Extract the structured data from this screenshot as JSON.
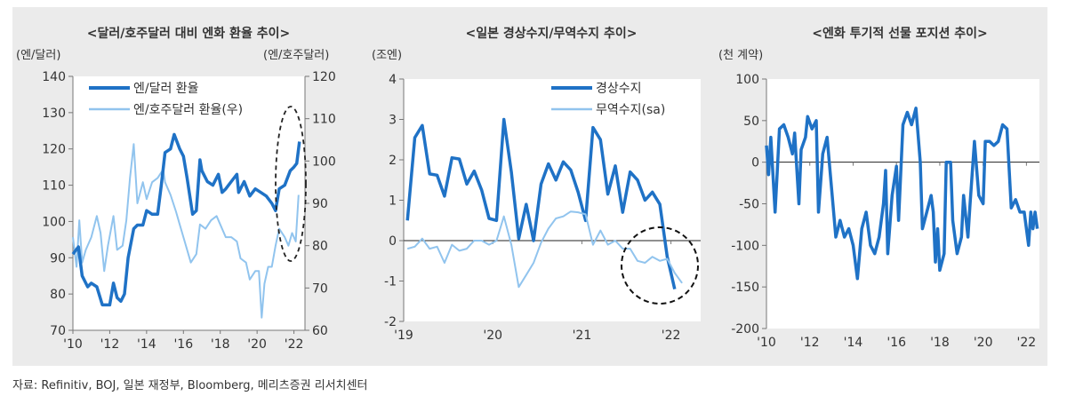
{
  "source": "자료: Refinitiv, BOJ, 일본 재정부, Bloomberg, 메리츠증권 리서치센터",
  "colors": {
    "dark": "#1f72c6",
    "light": "#91c4ee",
    "panel": "#ebebeb"
  },
  "chart_data": [
    {
      "type": "line",
      "title": "<달러/호주달러 대비 엔화 환율 추이>",
      "ylabel": "(엔/달러)",
      "ylabel_right": "(엔/호주달러)",
      "ylim": [
        70,
        140
      ],
      "ylim_right": [
        60,
        120
      ],
      "yticks": [
        "140",
        "130",
        "120",
        "110",
        "100",
        "90",
        "80",
        "70"
      ],
      "yticks_right": [
        "120",
        "110",
        "100",
        "90",
        "80",
        "70",
        "60"
      ],
      "xticks": [
        "'10",
        "'12",
        "'14",
        "'16",
        "'18",
        "'20",
        "'22"
      ],
      "xlim": [
        2010,
        2022.6
      ],
      "legend_position": "top-left",
      "annotation": "dashed ellipse around 2021-2022",
      "series": [
        {
          "name": "엔/달러 환율",
          "axis": "left",
          "color": "#1f72c6",
          "x": [
            2010.0,
            2010.3,
            2010.5,
            2010.8,
            2011.0,
            2011.3,
            2011.6,
            2011.8,
            2012.0,
            2012.2,
            2012.4,
            2012.6,
            2012.8,
            2013.0,
            2013.3,
            2013.5,
            2013.8,
            2014.0,
            2014.3,
            2014.6,
            2014.8,
            2015.0,
            2015.3,
            2015.5,
            2015.8,
            2016.0,
            2016.2,
            2016.5,
            2016.7,
            2016.9,
            2017.0,
            2017.3,
            2017.6,
            2017.9,
            2018.1,
            2018.3,
            2018.6,
            2018.9,
            2019.0,
            2019.3,
            2019.6,
            2019.9,
            2020.2,
            2020.5,
            2020.8,
            2021.0,
            2021.2,
            2021.5,
            2021.8,
            2022.0,
            2022.15,
            2022.3
          ],
          "values": [
            91,
            93,
            85,
            82,
            83,
            82,
            77,
            77,
            77,
            83,
            79,
            78,
            80,
            90,
            98,
            99,
            99,
            103,
            102,
            102,
            110,
            119,
            120,
            124,
            120,
            118,
            112,
            102,
            103,
            117,
            114,
            111,
            110,
            113,
            108,
            109,
            111,
            113,
            108,
            111,
            107,
            109,
            108,
            107,
            105,
            103,
            109,
            110,
            114,
            115,
            116,
            122
          ]
        },
        {
          "name": "엔/호주달러 환율(우)",
          "axis": "right",
          "color": "#91c4ee",
          "x": [
            2010.0,
            2010.2,
            2010.35,
            2010.5,
            2010.7,
            2011.0,
            2011.3,
            2011.5,
            2011.7,
            2011.9,
            2012.2,
            2012.4,
            2012.7,
            2012.9,
            2013.1,
            2013.3,
            2013.5,
            2013.8,
            2014.0,
            2014.3,
            2014.6,
            2014.9,
            2015.0,
            2015.3,
            2015.6,
            2015.8,
            2016.0,
            2016.4,
            2016.7,
            2016.9,
            2017.2,
            2017.5,
            2017.8,
            2018.0,
            2018.3,
            2018.6,
            2018.9,
            2019.1,
            2019.4,
            2019.6,
            2019.9,
            2020.1,
            2020.25,
            2020.4,
            2020.6,
            2020.8,
            2021.0,
            2021.2,
            2021.5,
            2021.7,
            2021.9,
            2022.1,
            2022.25
          ],
          "values": [
            82,
            75,
            86,
            76,
            79,
            82,
            87,
            83,
            74,
            80,
            87,
            79,
            80,
            86,
            96,
            104,
            90,
            95,
            91,
            95,
            96,
            98,
            95,
            92,
            88,
            85,
            82,
            76,
            78,
            85,
            84,
            86,
            87,
            85,
            82,
            82,
            81,
            77,
            76,
            72,
            74,
            74,
            63,
            71,
            75,
            75,
            80,
            84,
            82,
            80,
            83,
            81,
            92
          ]
        }
      ]
    },
    {
      "type": "line",
      "title": "<일본 경상수지/무역수지 추이>",
      "ylabel": "(조엔)",
      "ylim": [
        -2,
        4
      ],
      "yticks": [
        "4",
        "3",
        "2",
        "1",
        "0",
        "-1",
        "-2"
      ],
      "xticks": [
        "'19",
        "'20",
        "'21",
        "'22"
      ],
      "x_start": "2019-01",
      "frequency": "monthly",
      "legend_position": "top-right",
      "annotation": "dashed circle around late 2021-2022",
      "series": [
        {
          "name": "경상수지",
          "color": "#1f72c6",
          "values": [
            0.5,
            2.55,
            2.85,
            1.65,
            1.62,
            1.1,
            2.05,
            2.02,
            1.4,
            1.72,
            1.25,
            0.55,
            0.5,
            3.0,
            1.7,
            0.05,
            0.9,
            0.0,
            1.4,
            1.9,
            1.5,
            1.95,
            1.75,
            1.2,
            0.5,
            2.8,
            2.5,
            1.15,
            1.85,
            0.7,
            1.7,
            1.5,
            1.0,
            1.2,
            0.9,
            -0.4,
            -1.2
          ]
        },
        {
          "name": "무역수지(sa)",
          "color": "#91c4ee",
          "values": [
            -0.2,
            -0.15,
            0.05,
            -0.2,
            -0.15,
            -0.55,
            -0.1,
            -0.25,
            -0.2,
            0.0,
            0.0,
            -0.1,
            0.0,
            0.6,
            -0.1,
            -1.15,
            -0.85,
            -0.55,
            -0.05,
            0.3,
            0.55,
            0.6,
            0.72,
            0.7,
            0.65,
            -0.1,
            0.25,
            -0.1,
            0.0,
            -0.2,
            -0.2,
            -0.5,
            -0.55,
            -0.4,
            -0.5,
            -0.45,
            -0.8,
            -1.05
          ]
        }
      ]
    },
    {
      "type": "line",
      "title": "<엔화 투기적 선물 포지션 추이>",
      "ylabel": "(천 계약)",
      "ylim": [
        -200,
        100
      ],
      "yticks": [
        "100",
        "50",
        "0",
        "-50",
        "-100",
        "-150",
        "-200"
      ],
      "xticks": [
        "'10",
        "'12",
        "'14",
        "'16",
        "'18",
        "'20",
        "'22"
      ],
      "xlim": [
        2010,
        2022.6
      ],
      "series": [
        {
          "color": "#1f72c6",
          "x": [
            2010.0,
            2010.1,
            2010.2,
            2010.4,
            2010.5,
            2010.6,
            2010.8,
            2011.0,
            2011.2,
            2011.3,
            2011.5,
            2011.6,
            2011.8,
            2011.9,
            2012.1,
            2012.3,
            2012.4,
            2012.6,
            2012.8,
            2013.0,
            2013.2,
            2013.4,
            2013.6,
            2013.8,
            2014.0,
            2014.2,
            2014.4,
            2014.6,
            2014.8,
            2015.0,
            2015.2,
            2015.4,
            2015.5,
            2015.6,
            2015.8,
            2016.0,
            2016.1,
            2016.3,
            2016.5,
            2016.7,
            2016.9,
            2017.1,
            2017.2,
            2017.4,
            2017.6,
            2017.7,
            2017.8,
            2017.9,
            2018.0,
            2018.2,
            2018.3,
            2018.5,
            2018.6,
            2018.8,
            2019.0,
            2019.1,
            2019.3,
            2019.4,
            2019.6,
            2019.8,
            2020.0,
            2020.1,
            2020.3,
            2020.5,
            2020.7,
            2020.9,
            2021.1,
            2021.3,
            2021.5,
            2021.7,
            2021.9,
            2022.1,
            2022.2,
            2022.3,
            2022.4,
            2022.5
          ],
          "values": [
            20,
            -15,
            30,
            -60,
            -10,
            40,
            45,
            30,
            10,
            35,
            -50,
            15,
            30,
            55,
            40,
            50,
            -60,
            10,
            30,
            -30,
            -90,
            -70,
            -90,
            -80,
            -100,
            -140,
            -80,
            -60,
            -100,
            -110,
            -90,
            -50,
            -10,
            -110,
            -40,
            -5,
            -70,
            45,
            60,
            45,
            65,
            0,
            -80,
            -60,
            -40,
            -60,
            -120,
            -80,
            -130,
            -110,
            0,
            0,
            -70,
            -110,
            -90,
            -40,
            -90,
            -50,
            25,
            -40,
            -50,
            25,
            25,
            20,
            25,
            45,
            40,
            -55,
            -45,
            -60,
            -60,
            -100,
            -60,
            -80,
            -60,
            -80
          ]
        }
      ]
    }
  ]
}
